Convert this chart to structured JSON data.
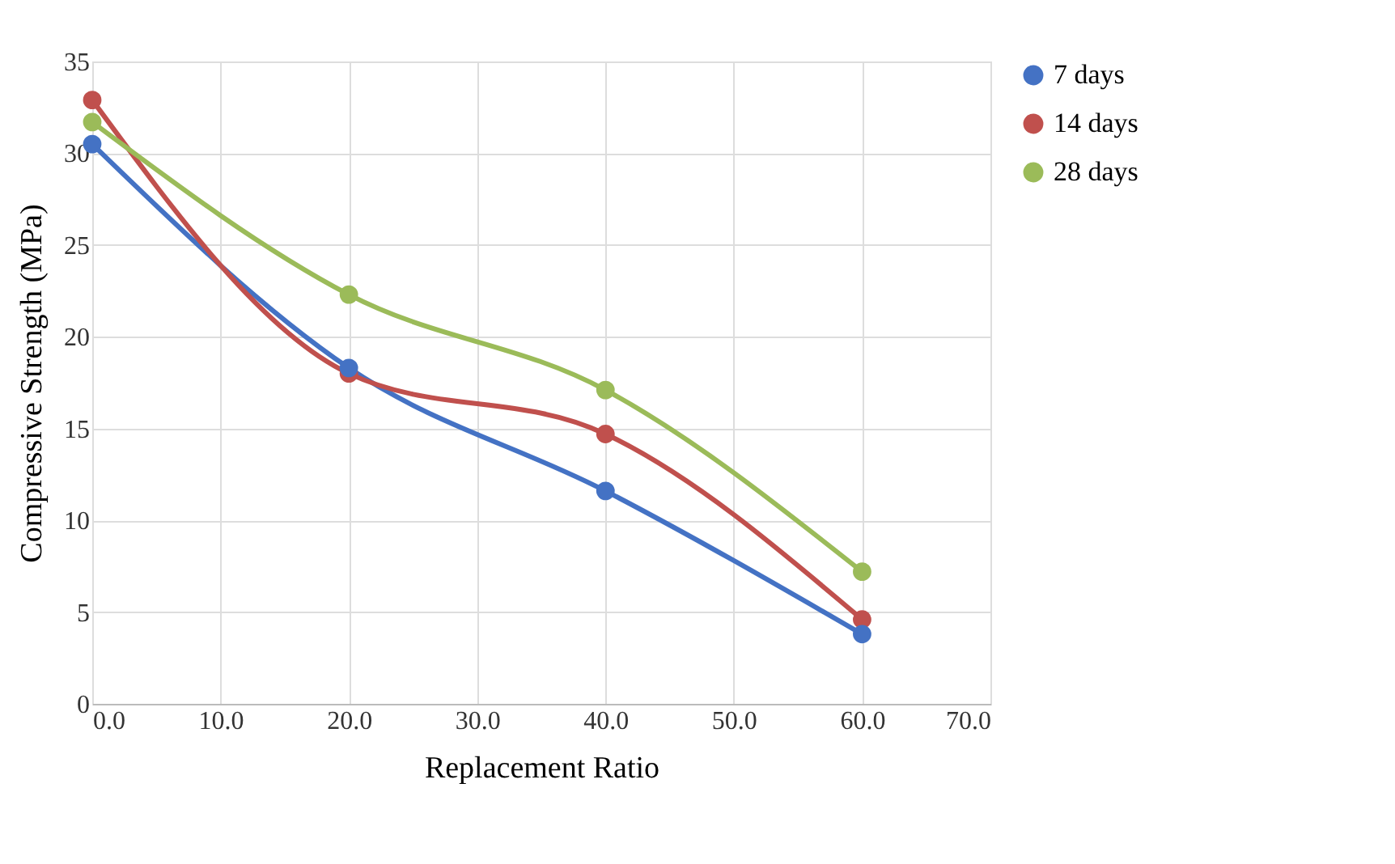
{
  "chart_data": {
    "type": "line",
    "xlabel": "Replacement Ratio",
    "ylabel": "Compressive Strength (MPa)",
    "x": [
      0,
      20,
      40,
      60
    ],
    "series": [
      {
        "name": "7 days",
        "color": "#4472c4",
        "values": [
          30.5,
          18.3,
          11.6,
          3.8
        ]
      },
      {
        "name": "14 days",
        "color": "#c0504d",
        "values": [
          32.9,
          18.0,
          14.7,
          4.6
        ]
      },
      {
        "name": "28 days",
        "color": "#9bbb59",
        "values": [
          31.7,
          22.3,
          17.1,
          7.2
        ]
      }
    ],
    "xlim": [
      0,
      70
    ],
    "xticks": [
      {
        "value": 0,
        "label": "0.0"
      },
      {
        "value": 10,
        "label": "10.0"
      },
      {
        "value": 20,
        "label": "20.0"
      },
      {
        "value": 30,
        "label": "30.0"
      },
      {
        "value": 40,
        "label": "40.0"
      },
      {
        "value": 50,
        "label": "50.0"
      },
      {
        "value": 60,
        "label": "60.0"
      },
      {
        "value": 70,
        "label": "70.0"
      }
    ],
    "ylim": [
      0,
      35
    ],
    "yticks": [
      0,
      5,
      10,
      15,
      20,
      25,
      30,
      35
    ],
    "grid": true,
    "legend": "right",
    "marker": "circle",
    "line_style": "solid"
  }
}
